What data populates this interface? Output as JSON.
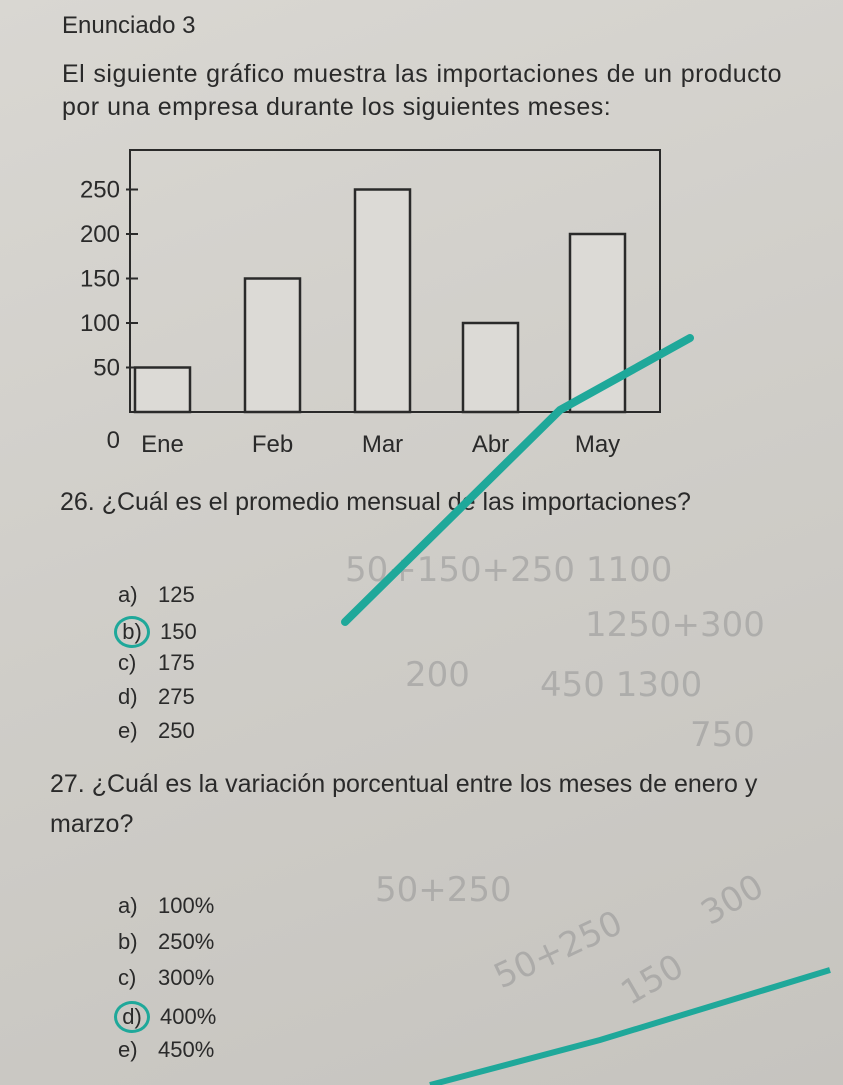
{
  "heading": "Enunciado 3",
  "intro": "El siguiente gráfico muestra las importaciones de un producto por una empresa durante los siguientes meses:",
  "chart_data": {
    "type": "bar",
    "categories": [
      "Ene",
      "Feb",
      "Mar",
      "Abr",
      "May"
    ],
    "values": [
      50,
      150,
      250,
      100,
      200
    ],
    "yticks": [
      "250",
      "200",
      "150",
      "100",
      "50",
      "0"
    ],
    "ylim": [
      0,
      250
    ],
    "grid": false,
    "bar_color": "#dcdad6",
    "title": "",
    "xlabel": "",
    "ylabel": ""
  },
  "q26": {
    "text": "26. ¿Cuál es el promedio mensual de las importaciones?",
    "options": [
      {
        "letter": "a)",
        "value": "125"
      },
      {
        "letter": "b)",
        "value": "150"
      },
      {
        "letter": "c)",
        "value": "175"
      },
      {
        "letter": "d)",
        "value": "275"
      },
      {
        "letter": "e)",
        "value": "250"
      }
    ],
    "marked": "b)"
  },
  "q27": {
    "text": "27. ¿Cuál es la variación porcentual entre los meses de enero y marzo?",
    "options": [
      {
        "letter": "a)",
        "value": "100%"
      },
      {
        "letter": "b)",
        "value": "250%"
      },
      {
        "letter": "c)",
        "value": "300%"
      },
      {
        "letter": "d)",
        "value": "400%"
      },
      {
        "letter": "e)",
        "value": "450%"
      }
    ],
    "marked": "d)"
  },
  "handwriting": [
    "50+150+250 1100",
    "1250+300",
    "200",
    "450 1300",
    "750",
    "50+250",
    "50+250",
    "300",
    "150"
  ],
  "colors": {
    "marker": "#1fa89a",
    "ink": "#2a2a2a"
  }
}
